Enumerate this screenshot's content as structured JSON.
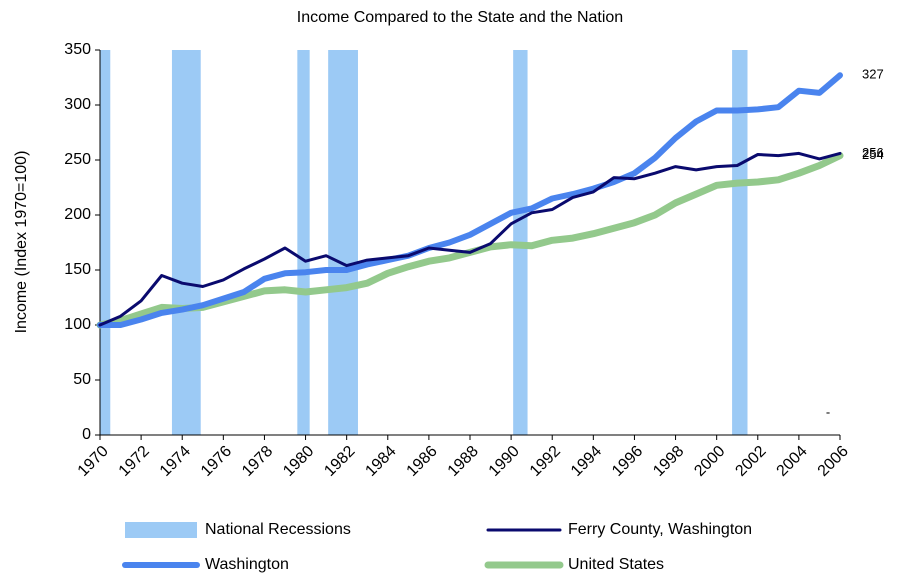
{
  "chart_data": {
    "type": "line",
    "title": "Income Compared to the State and the Nation",
    "y_label": "Income (Index 1970=100)",
    "x": [
      1970,
      1971,
      1972,
      1973,
      1974,
      1975,
      1976,
      1977,
      1978,
      1979,
      1980,
      1981,
      1982,
      1983,
      1984,
      1985,
      1986,
      1987,
      1988,
      1989,
      1990,
      1991,
      1992,
      1993,
      1994,
      1995,
      1996,
      1997,
      1998,
      1999,
      2000,
      2001,
      2002,
      2003,
      2004,
      2005,
      2006
    ],
    "xlim": [
      1970,
      2006
    ],
    "xticks": [
      1970,
      1972,
      1974,
      1976,
      1978,
      1980,
      1982,
      1984,
      1986,
      1988,
      1990,
      1992,
      1994,
      1996,
      1998,
      2000,
      2002,
      2004,
      2006
    ],
    "ylim": [
      0,
      350
    ],
    "yticks": [
      0,
      50,
      100,
      150,
      200,
      250,
      300,
      350
    ],
    "recessions": {
      "name": "National Recessions",
      "color": "#9ccaf5",
      "ranges": [
        [
          1969.9,
          1970.5
        ],
        [
          1973.5,
          1974.9
        ],
        [
          1979.6,
          1980.2
        ],
        [
          1981.1,
          1982.55
        ],
        [
          1990.1,
          1990.8
        ],
        [
          2000.75,
          2001.5
        ]
      ]
    },
    "series": [
      {
        "name": "Ferry County, Washington",
        "color": "#0a0a6e",
        "width": 3,
        "values": [
          100,
          108,
          122,
          145,
          138,
          135,
          141,
          151,
          160,
          170,
          158,
          163,
          154,
          159,
          161,
          163,
          170,
          168,
          166,
          174,
          192,
          202,
          205,
          216,
          221,
          234,
          233,
          238,
          244,
          241,
          244,
          245,
          255,
          254,
          256,
          251,
          256
        ]
      },
      {
        "name": "Washington",
        "color": "#4a84ee",
        "width": 6,
        "values": [
          100,
          100,
          105,
          111,
          114,
          118,
          124,
          130,
          142,
          147,
          148,
          150,
          150,
          155,
          159,
          163,
          170,
          175,
          182,
          192,
          202,
          206,
          215,
          219,
          224,
          230,
          238,
          252,
          270,
          285,
          295,
          295,
          296,
          298,
          313,
          311,
          327
        ]
      },
      {
        "name": "United States",
        "color": "#93c98c",
        "width": 7,
        "values": [
          100,
          104,
          110,
          116,
          115,
          116,
          121,
          126,
          131,
          132,
          130,
          132,
          134,
          138,
          147,
          153,
          158,
          161,
          166,
          171,
          173,
          172,
          177,
          179,
          183,
          188,
          193,
          200,
          211,
          219,
          227,
          229,
          230,
          232,
          238,
          245,
          254
        ]
      }
    ],
    "annotations": [
      "-"
    ]
  }
}
